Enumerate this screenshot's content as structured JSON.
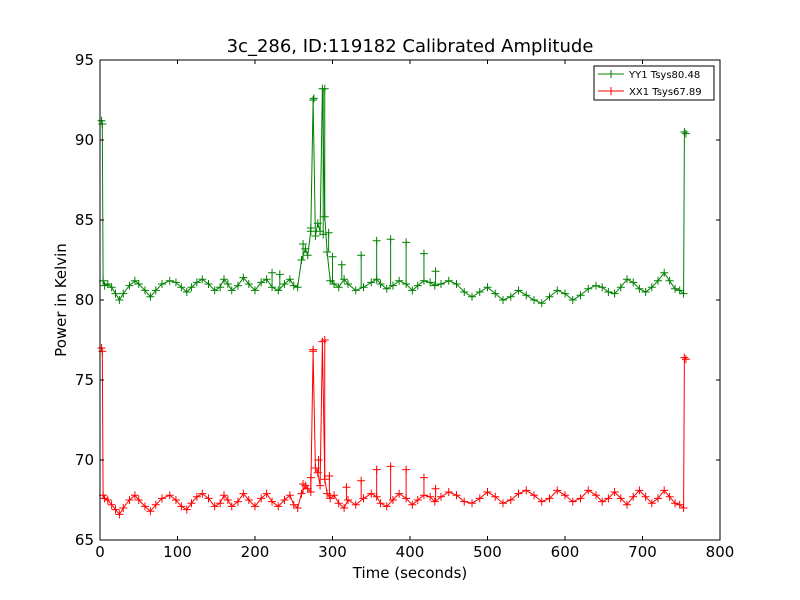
{
  "chart_data": {
    "type": "line",
    "title": "3c_286, ID:119182 Calibrated Amplitude",
    "xlabel": "Time (seconds)",
    "ylabel": "Power in Kelvin",
    "xlim": [
      0,
      800
    ],
    "ylim": [
      65,
      95
    ],
    "xticks": [
      "0",
      "100",
      "200",
      "300",
      "400",
      "500",
      "600",
      "700",
      "800"
    ],
    "yticks": [
      "65",
      "70",
      "75",
      "80",
      "85",
      "90",
      "95"
    ],
    "grid": false,
    "legend_position": "top-right",
    "marker": "plus",
    "series": [
      {
        "name": "YY1 Tsys80.48",
        "color": "#008000",
        "x": [
          2,
          3,
          4,
          6,
          10,
          15,
          20,
          25,
          30,
          38,
          45,
          50,
          58,
          65,
          72,
          80,
          90,
          98,
          105,
          112,
          118,
          125,
          132,
          140,
          148,
          155,
          160,
          165,
          170,
          178,
          185,
          192,
          200,
          208,
          215,
          222,
          230,
          238,
          245,
          250,
          255,
          260,
          265,
          268,
          272,
          275,
          278,
          281,
          284,
          287,
          290,
          293,
          297,
          302,
          308,
          315,
          320,
          330,
          340,
          350,
          357,
          362,
          370,
          378,
          386,
          395,
          403,
          410,
          418,
          426,
          432,
          440,
          450,
          460,
          470,
          480,
          490,
          500,
          510,
          520,
          530,
          540,
          550,
          560,
          570,
          580,
          590,
          600,
          610,
          620,
          630,
          640,
          648,
          656,
          664,
          672,
          680,
          688,
          696,
          704,
          712,
          720,
          728,
          735,
          742,
          748,
          753,
          754,
          756
        ],
        "y": [
          91.2,
          91.0,
          81.2,
          80.9,
          81.0,
          80.8,
          80.4,
          80.0,
          80.4,
          80.9,
          81.2,
          81.0,
          80.6,
          80.2,
          80.6,
          81.0,
          81.2,
          81.1,
          80.8,
          80.5,
          80.8,
          81.1,
          81.3,
          81.0,
          80.6,
          80.8,
          81.3,
          81.0,
          80.6,
          80.9,
          81.4,
          81.0,
          80.6,
          81.1,
          81.3,
          80.8,
          80.6,
          81.0,
          81.3,
          80.9,
          80.8,
          82.5,
          83.2,
          82.8,
          84.3,
          92.5,
          84.0,
          84.8,
          84.3,
          93.2,
          85.2,
          83.0,
          81.2,
          81.0,
          80.8,
          81.3,
          81.0,
          80.6,
          80.8,
          81.1,
          81.3,
          81.0,
          80.7,
          80.9,
          81.2,
          81.0,
          80.6,
          80.9,
          81.2,
          81.1,
          80.9,
          81.0,
          81.2,
          81.0,
          80.5,
          80.2,
          80.5,
          80.8,
          80.4,
          80.0,
          80.2,
          80.6,
          80.3,
          80.0,
          79.8,
          80.2,
          80.6,
          80.4,
          80.0,
          80.3,
          80.7,
          80.9,
          80.8,
          80.5,
          80.4,
          80.8,
          81.3,
          81.1,
          80.7,
          80.5,
          80.8,
          81.2,
          81.7,
          81.2,
          80.7,
          80.6,
          80.4,
          90.5,
          90.4
        ],
        "spikes": [
          [
            222,
            81.7
          ],
          [
            232,
            81.6
          ],
          [
            262,
            83.5
          ],
          [
            272,
            84.5
          ],
          [
            276,
            92.6
          ],
          [
            288,
            84.1
          ],
          [
            290,
            93.2
          ],
          [
            295,
            84.2
          ],
          [
            300,
            82.7
          ],
          [
            312,
            82.2
          ],
          [
            337,
            82.8
          ],
          [
            357,
            83.7
          ],
          [
            375,
            83.8
          ],
          [
            395,
            83.6
          ],
          [
            418,
            82.9
          ],
          [
            433,
            81.8
          ]
        ]
      },
      {
        "name": "XX1 Tsys67.89",
        "color": "#ff0000",
        "x": [
          2,
          3,
          4,
          6,
          10,
          15,
          20,
          25,
          30,
          38,
          45,
          50,
          58,
          65,
          72,
          80,
          90,
          98,
          105,
          112,
          118,
          125,
          132,
          140,
          148,
          155,
          160,
          165,
          170,
          178,
          185,
          192,
          200,
          208,
          215,
          222,
          230,
          238,
          245,
          250,
          255,
          260,
          265,
          268,
          272,
          275,
          278,
          281,
          284,
          287,
          290,
          293,
          297,
          302,
          308,
          315,
          320,
          330,
          340,
          350,
          357,
          362,
          370,
          378,
          386,
          395,
          403,
          410,
          418,
          426,
          432,
          440,
          450,
          460,
          470,
          480,
          490,
          500,
          510,
          520,
          530,
          540,
          550,
          560,
          570,
          580,
          590,
          600,
          610,
          620,
          630,
          640,
          648,
          656,
          664,
          672,
          680,
          688,
          696,
          704,
          712,
          720,
          728,
          735,
          742,
          748,
          753,
          754,
          756
        ],
        "y": [
          77.0,
          76.8,
          67.8,
          67.6,
          67.5,
          67.2,
          66.9,
          66.6,
          67.0,
          67.5,
          67.8,
          67.5,
          67.1,
          66.8,
          67.2,
          67.6,
          67.8,
          67.5,
          67.1,
          66.9,
          67.3,
          67.7,
          67.9,
          67.6,
          67.1,
          67.3,
          67.8,
          67.5,
          67.1,
          67.4,
          67.9,
          67.5,
          67.1,
          67.6,
          67.9,
          67.4,
          67.1,
          67.5,
          67.8,
          67.2,
          67.0,
          67.9,
          68.4,
          68.2,
          68.0,
          76.8,
          69.5,
          69.2,
          68.4,
          77.4,
          68.8,
          67.9,
          67.6,
          67.8,
          67.3,
          67.0,
          67.5,
          67.2,
          67.6,
          67.9,
          67.7,
          67.3,
          67.1,
          67.5,
          67.9,
          67.6,
          67.2,
          67.5,
          67.8,
          67.7,
          67.4,
          67.7,
          68.0,
          67.8,
          67.4,
          67.3,
          67.6,
          68.0,
          67.7,
          67.3,
          67.5,
          67.9,
          68.1,
          67.8,
          67.4,
          67.6,
          68.1,
          67.8,
          67.4,
          67.6,
          68.1,
          67.8,
          67.4,
          67.6,
          68.0,
          67.6,
          67.2,
          67.7,
          68.1,
          67.7,
          67.3,
          67.6,
          68.1,
          67.7,
          67.3,
          67.2,
          67.0,
          76.4,
          76.3
        ],
        "spikes": [
          [
            262,
            68.5
          ],
          [
            272,
            68.9
          ],
          [
            275,
            76.9
          ],
          [
            282,
            70.0
          ],
          [
            290,
            77.5
          ],
          [
            296,
            69.0
          ],
          [
            318,
            68.3
          ],
          [
            337,
            68.7
          ],
          [
            357,
            69.4
          ],
          [
            375,
            69.6
          ],
          [
            395,
            69.4
          ],
          [
            418,
            68.9
          ],
          [
            433,
            68.2
          ]
        ]
      }
    ]
  }
}
